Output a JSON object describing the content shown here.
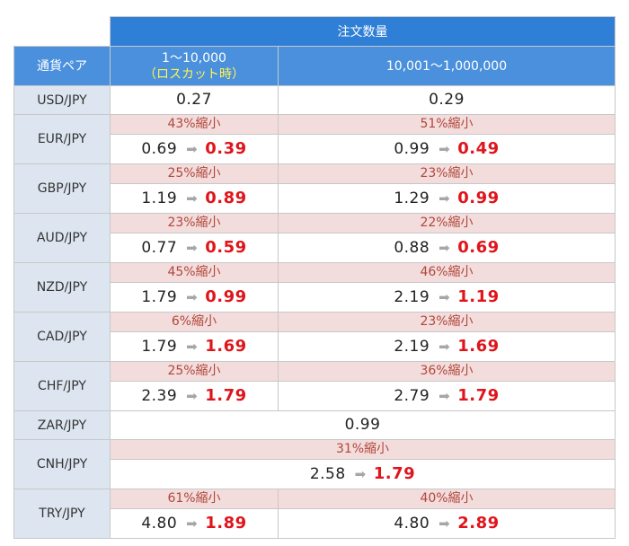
{
  "header": {
    "order_qty": "注文数量",
    "pair_col": "通貨ペア",
    "col1_range": "1～10,000",
    "col1_note": "（ロスカット時）",
    "col2_range": "10,001～1,000,000"
  },
  "rows": [
    {
      "pair": "USD/JPY",
      "c1": "0.27",
      "c2": "0.29"
    },
    {
      "pair": "EUR/JPY",
      "c1": {
        "pct": "43%縮小",
        "old": "0.69",
        "new": "0.39"
      },
      "c2": {
        "pct": "51%縮小",
        "old": "0.99",
        "new": "0.49"
      }
    },
    {
      "pair": "GBP/JPY",
      "c1": {
        "pct": "25%縮小",
        "old": "1.19",
        "new": "0.89"
      },
      "c2": {
        "pct": "23%縮小",
        "old": "1.29",
        "new": "0.99"
      }
    },
    {
      "pair": "AUD/JPY",
      "c1": {
        "pct": "23%縮小",
        "old": "0.77",
        "new": "0.59"
      },
      "c2": {
        "pct": "22%縮小",
        "old": "0.88",
        "new": "0.69"
      }
    },
    {
      "pair": "NZD/JPY",
      "c1": {
        "pct": "45%縮小",
        "old": "1.79",
        "new": "0.99"
      },
      "c2": {
        "pct": "46%縮小",
        "old": "2.19",
        "new": "1.19"
      }
    },
    {
      "pair": "CAD/JPY",
      "c1": {
        "pct": "6%縮小",
        "old": "1.79",
        "new": "1.69"
      },
      "c2": {
        "pct": "23%縮小",
        "old": "2.19",
        "new": "1.69"
      }
    },
    {
      "pair": "CHF/JPY",
      "c1": {
        "pct": "25%縮小",
        "old": "2.39",
        "new": "1.79"
      },
      "c2": {
        "pct": "36%縮小",
        "old": "2.79",
        "new": "1.79"
      }
    },
    {
      "pair": "ZAR/JPY",
      "merged": "0.99"
    },
    {
      "pair": "CNH/JPY",
      "merged": {
        "pct": "31%縮小",
        "old": "2.58",
        "new": "1.79"
      }
    },
    {
      "pair": "TRY/JPY",
      "c1": {
        "pct": "61%縮小",
        "old": "4.80",
        "new": "1.89"
      },
      "c2": {
        "pct": "40%縮小",
        "old": "4.80",
        "new": "2.89"
      }
    }
  ],
  "icons": {
    "arrow": "right-arrow-icon"
  },
  "colors": {
    "header_top": "#2f7fd6",
    "header_sub": "#4a90dc",
    "pair_bg": "#dde6f0",
    "pct_bg": "#f3dcdc",
    "pct_text": "#b0473a",
    "new_value": "#e0141b",
    "note": "#fff44f"
  }
}
